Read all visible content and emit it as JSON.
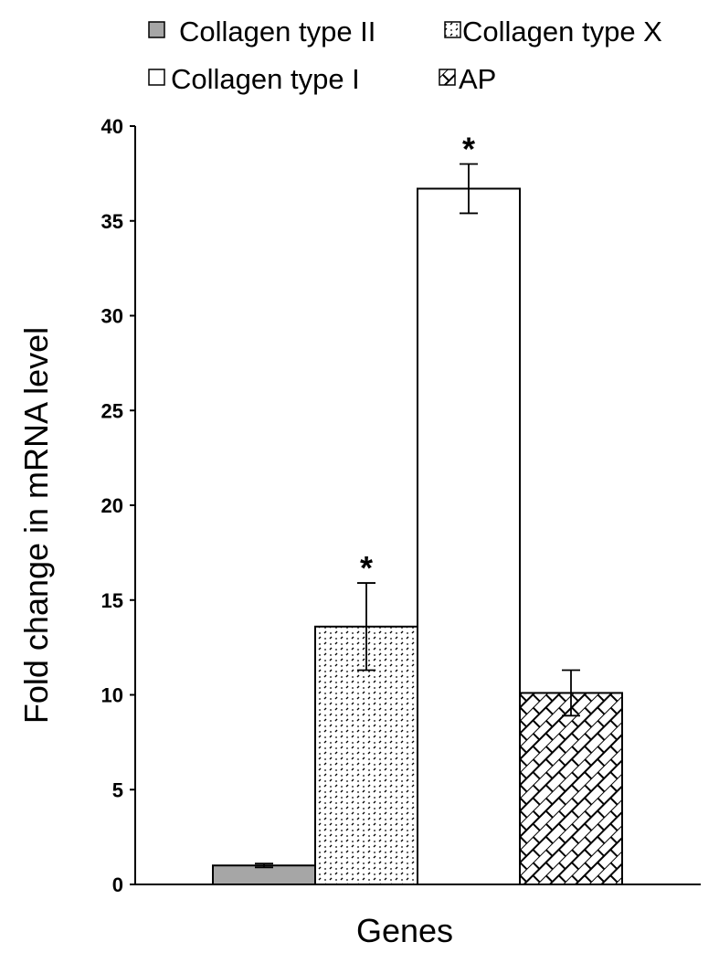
{
  "chart_data": {
    "type": "bar",
    "title": "",
    "xlabel": "Genes",
    "ylabel": "Fold change in mRNA level",
    "ylim": [
      0,
      40
    ],
    "yticks": [
      "0",
      "5",
      "10",
      "15",
      "20",
      "25",
      "30",
      "35",
      "40"
    ],
    "grid": false,
    "legend_position": "top",
    "series": [
      {
        "name": "Collagen type II",
        "value": 1.0,
        "error": 0.1,
        "significance": "",
        "pattern": "solid-gray",
        "color": "#a6a6a6"
      },
      {
        "name": "Collagen type X",
        "value": 13.6,
        "error": 2.3,
        "significance": "*",
        "pattern": "dots",
        "color": "#000000"
      },
      {
        "name": "Collagen type I",
        "value": 36.7,
        "error": 1.3,
        "significance": "*",
        "pattern": "empty",
        "color": "#ffffff"
      },
      {
        "name": "AP",
        "value": 10.1,
        "error": 1.2,
        "significance": "",
        "pattern": "diagonal-brick",
        "color": "#000000"
      }
    ]
  }
}
